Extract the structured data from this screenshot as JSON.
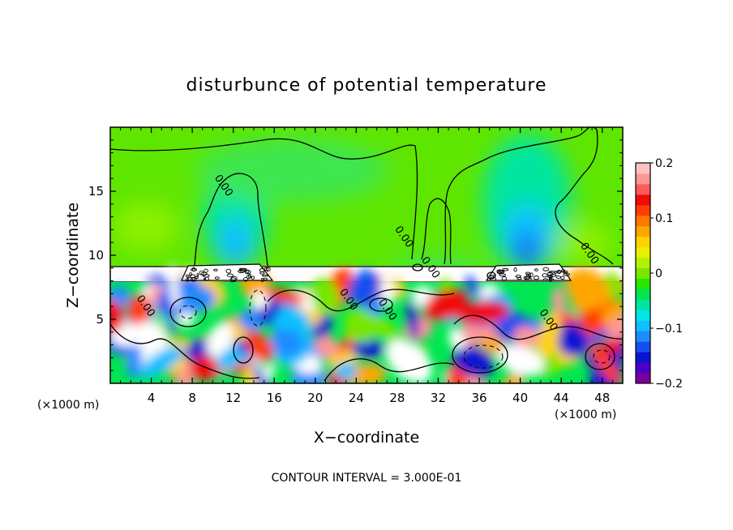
{
  "chart_data": {
    "type": "heatmap",
    "title": "disturbunce of potential temperature",
    "xlabel": "X−coordinate",
    "ylabel": "Z−coordinate",
    "x_unit": "(×1000 m)",
    "y_unit": "(×1000 m)",
    "xlim": [
      0,
      50
    ],
    "ylim": [
      0,
      20
    ],
    "x_ticks": [
      4,
      8,
      12,
      16,
      20,
      24,
      28,
      32,
      36,
      40,
      44,
      48
    ],
    "x_tick_labels": [
      "4",
      "8",
      "12",
      "16",
      "20",
      "24",
      "28",
      "32",
      "36",
      "40",
      "44",
      "48"
    ],
    "y_ticks": [
      5,
      10,
      15
    ],
    "y_tick_labels": [
      "5",
      "10",
      "15"
    ],
    "colorbar": {
      "min": -0.2,
      "max": 0.2,
      "ticks": [
        0.2,
        0.1,
        0,
        -0.1,
        -0.2
      ],
      "tick_labels": [
        "0.2",
        "0.1",
        "0",
        "−0.1",
        "−0.2"
      ],
      "colors": [
        "#7a009e",
        "#4b00c8",
        "#0a14d2",
        "#1450f0",
        "#1e8cff",
        "#10c0ff",
        "#00e6e6",
        "#00e6a0",
        "#00e650",
        "#28e600",
        "#78e600",
        "#b4f000",
        "#e6f000",
        "#ffd200",
        "#ffa500",
        "#ff7800",
        "#ff3c00",
        "#f00a0a",
        "#ff5a5a",
        "#ff9696",
        "#ffc0c0"
      ]
    },
    "contour_labels": [
      {
        "text": "0.00",
        "x": 10.8,
        "z": 15.3
      },
      {
        "text": "0.00",
        "x": 28.4,
        "z": 11.3
      },
      {
        "text": "0.00",
        "x": 31.0,
        "z": 8.9
      },
      {
        "text": "0.00",
        "x": 46.5,
        "z": 10.0
      },
      {
        "text": "0.00",
        "x": 23.0,
        "z": 6.4
      },
      {
        "text": "0.00",
        "x": 26.8,
        "z": 5.6
      },
      {
        "text": "0.00",
        "x": 42.5,
        "z": 4.8
      },
      {
        "text": "0.00",
        "x": 3.2,
        "z": 5.9
      }
    ],
    "footer": "CONTOUR INTERVAL =  3.000E-01"
  }
}
